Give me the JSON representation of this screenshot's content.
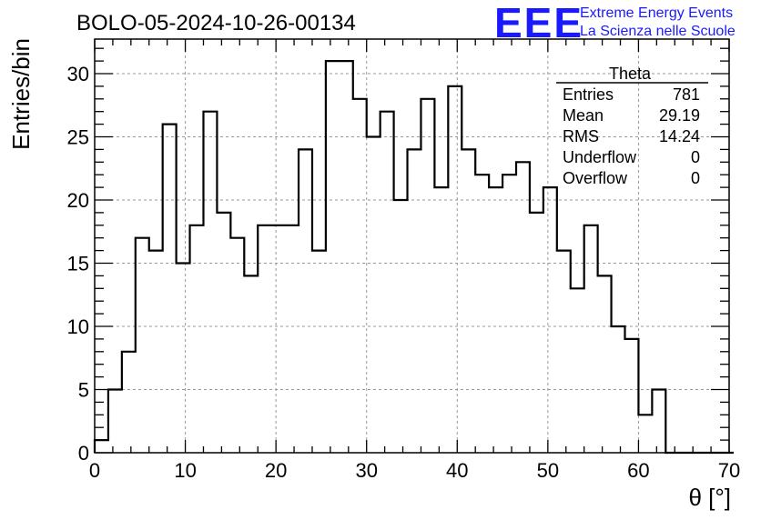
{
  "chart_data": {
    "type": "histogram",
    "title": "BOLO-05-2024-10-26-00134",
    "xlabel": "θ [°]",
    "ylabel": "Entries/bin",
    "xlim": [
      0,
      70
    ],
    "ylim": [
      0,
      32.5
    ],
    "xticks": [
      "0",
      "10",
      "20",
      "30",
      "40",
      "50",
      "60",
      "70"
    ],
    "yticks": [
      "0",
      "5",
      "10",
      "15",
      "20",
      "25",
      "30"
    ],
    "grid": true,
    "bin_width": 1.5,
    "bin_edges_start": 0,
    "values": [
      1,
      5,
      8,
      17,
      16,
      26,
      15,
      18,
      27,
      19,
      17,
      14,
      18,
      18,
      18,
      24,
      16,
      31,
      31,
      28,
      25,
      27,
      20,
      24,
      28,
      21,
      29,
      24,
      22,
      21,
      22,
      23,
      19,
      21,
      16,
      13,
      18,
      14,
      10,
      9,
      3,
      5,
      0,
      0,
      0,
      0,
      0
    ]
  },
  "stats_box": {
    "name": "Theta",
    "rows": [
      {
        "label": "Entries",
        "value": "781"
      },
      {
        "label": "Mean",
        "value": "29.19"
      },
      {
        "label": "RMS",
        "value": "14.24"
      },
      {
        "label": "Underflow",
        "value": "0"
      },
      {
        "label": "Overflow",
        "value": "0"
      }
    ]
  },
  "logo": {
    "mark": "EEE",
    "line1": "Extreme Energy Events",
    "line2": "La Scienza nelle Scuole",
    "color": "#1a1aff"
  }
}
